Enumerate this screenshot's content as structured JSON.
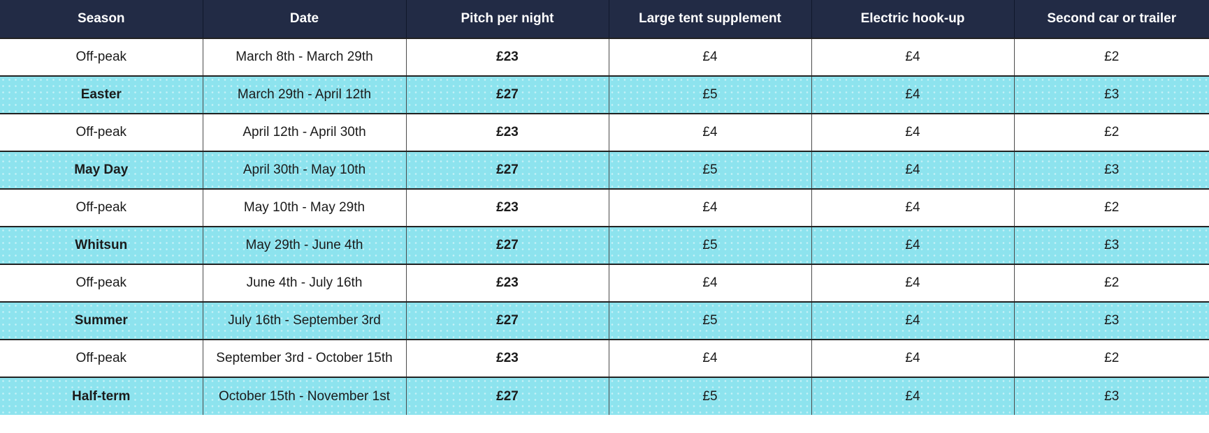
{
  "table": {
    "columns": [
      "Season",
      "Date",
      "Pitch per night",
      "Large tent supplement",
      "Electric hook-up",
      "Second car or trailer"
    ],
    "column_keys": [
      "season",
      "date",
      "pitch-per-night",
      "large-tent-supplement",
      "electric-hook-up",
      "second-car-or-trailer"
    ],
    "rows": [
      {
        "season": "Off-peak",
        "date": "March 8th - March 29th",
        "pitch_per_night": "£23",
        "large_tent_supplement": "£4",
        "electric_hookup": "£4",
        "second_car_or_trailer": "£2",
        "highlight": false
      },
      {
        "season": "Easter",
        "date": "March 29th - April 12th",
        "pitch_per_night": "£27",
        "large_tent_supplement": "£5",
        "electric_hookup": "£4",
        "second_car_or_trailer": "£3",
        "highlight": true
      },
      {
        "season": "Off-peak",
        "date": "April 12th - April 30th",
        "pitch_per_night": "£23",
        "large_tent_supplement": "£4",
        "electric_hookup": "£4",
        "second_car_or_trailer": "£2",
        "highlight": false
      },
      {
        "season": "May Day",
        "date": "April 30th - May 10th",
        "pitch_per_night": "£27",
        "large_tent_supplement": "£5",
        "electric_hookup": "£4",
        "second_car_or_trailer": "£3",
        "highlight": true
      },
      {
        "season": "Off-peak",
        "date": "May 10th - May 29th",
        "pitch_per_night": "£23",
        "large_tent_supplement": "£4",
        "electric_hookup": "£4",
        "second_car_or_trailer": "£2",
        "highlight": false
      },
      {
        "season": "Whitsun",
        "date": "May 29th - June 4th",
        "pitch_per_night": "£27",
        "large_tent_supplement": "£5",
        "electric_hookup": "£4",
        "second_car_or_trailer": "£3",
        "highlight": true
      },
      {
        "season": "Off-peak",
        "date": "June 4th - July 16th",
        "pitch_per_night": "£23",
        "large_tent_supplement": "£4",
        "electric_hookup": "£4",
        "second_car_or_trailer": "£2",
        "highlight": false
      },
      {
        "season": "Summer",
        "date": "July 16th - September 3rd",
        "pitch_per_night": "£27",
        "large_tent_supplement": "£5",
        "electric_hookup": "£4",
        "second_car_or_trailer": "£3",
        "highlight": true
      },
      {
        "season": "Off-peak",
        "date": "September 3rd - October 15th",
        "pitch_per_night": "£23",
        "large_tent_supplement": "£4",
        "electric_hookup": "£4",
        "second_car_or_trailer": "£2",
        "highlight": false
      },
      {
        "season": "Half-term",
        "date": "October 15th - November 1st",
        "pitch_per_night": "£27",
        "large_tent_supplement": "£5",
        "electric_hookup": "£4",
        "second_car_or_trailer": "£3",
        "highlight": true
      }
    ]
  },
  "colors": {
    "header_bg": "#222B45",
    "highlight_row_bg": "#8DE3EE",
    "row_bg": "#FFFFFF",
    "header_text": "#FFFFFF",
    "cell_text": "#1B1B1B"
  }
}
